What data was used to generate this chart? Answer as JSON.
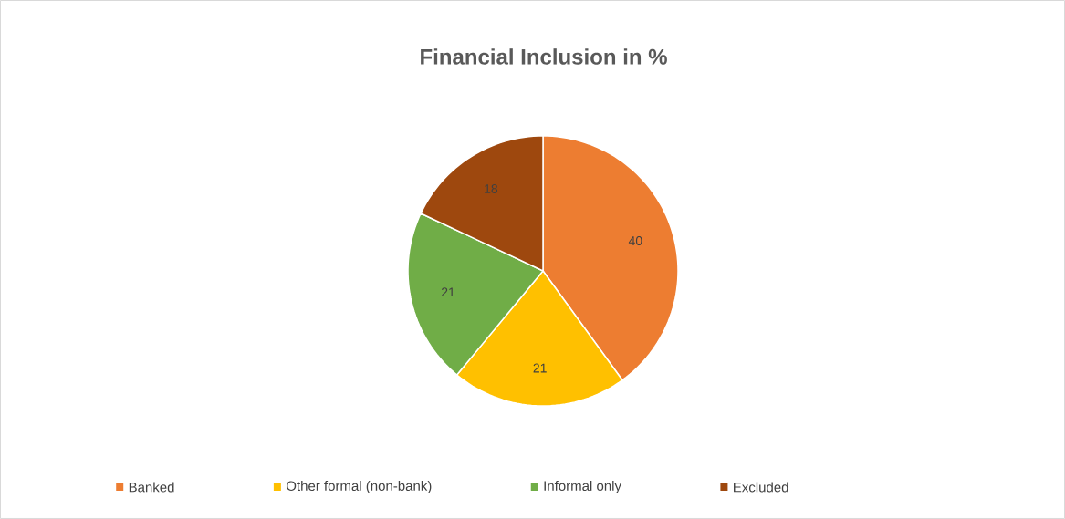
{
  "chart_data": {
    "type": "pie",
    "title": "Financial Inclusion in %",
    "categories": [
      "Banked",
      "Other formal (non-bank)",
      "Informal only",
      "Excluded"
    ],
    "values": [
      40,
      21,
      21,
      18
    ],
    "colors": [
      "#ed7d31",
      "#ffc000",
      "#70ad47",
      "#9e480e"
    ],
    "data_labels": true,
    "legend": "bottom"
  }
}
